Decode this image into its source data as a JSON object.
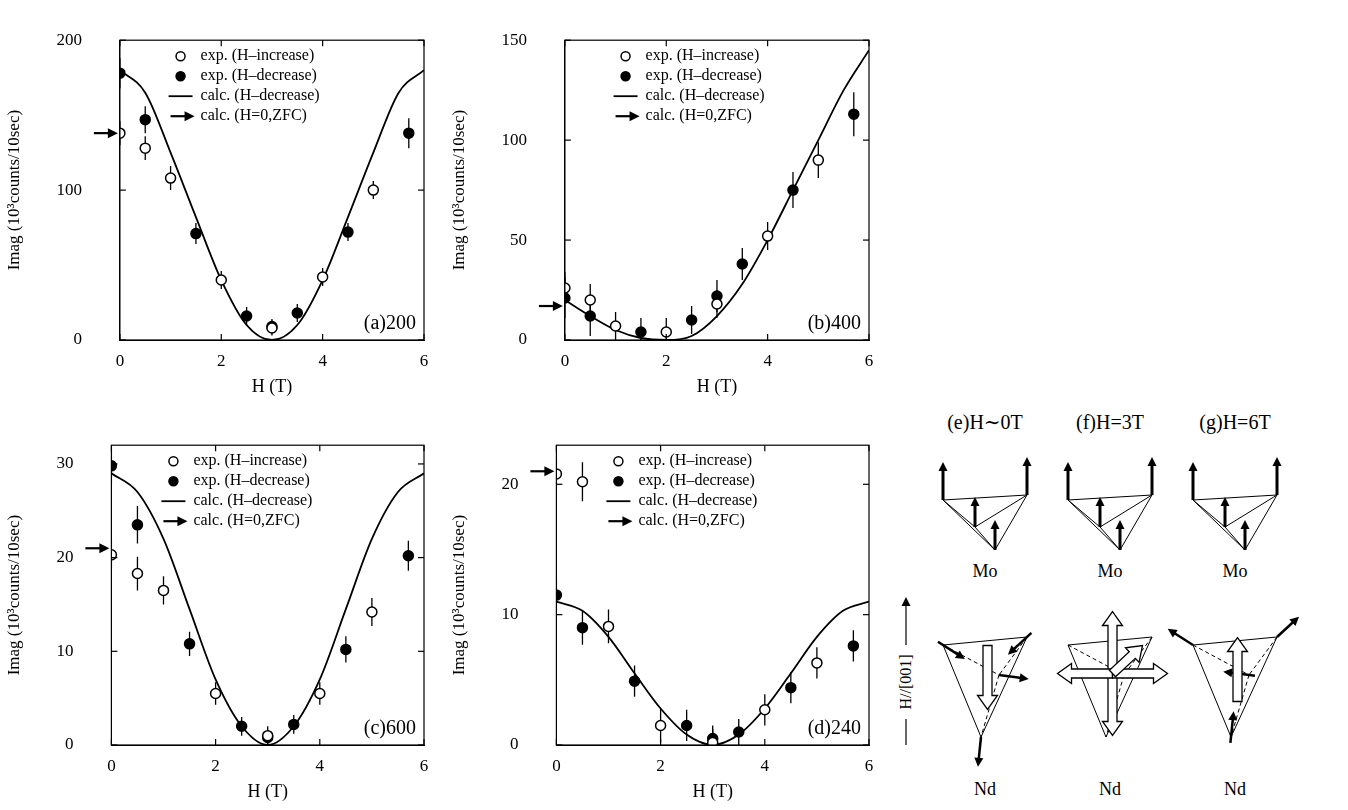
{
  "chart_data": [
    {
      "type": "scatter",
      "title": "(a)200",
      "x_label": "H (T)",
      "y_label": "Imag (10³counts/10sec)",
      "xlim": [
        0,
        6
      ],
      "xticks": [
        0,
        2,
        4,
        6
      ],
      "ylim": [
        0,
        200
      ],
      "yticks": [
        0,
        100,
        200
      ],
      "legend": "upper center",
      "series": [
        {
          "name": "exp. (H–increase)",
          "type": "scatter",
          "marker": "circle-open",
          "color": "#000000",
          "x": [
            0,
            0.5,
            1,
            2,
            3,
            4,
            5
          ],
          "values": [
            138,
            128,
            108,
            40,
            8,
            42,
            100
          ],
          "errors": [
            8,
            8,
            8,
            6,
            5,
            6,
            6
          ]
        },
        {
          "name": "exp. (H–decrease)",
          "type": "scatter",
          "marker": "circle",
          "color": "#000000",
          "x": [
            0,
            0.5,
            1.5,
            2.5,
            3,
            3.5,
            4.5,
            5.7
          ],
          "values": [
            178,
            147,
            71,
            16,
            9,
            18,
            72,
            138
          ],
          "errors": [
            10,
            9,
            7,
            6,
            5,
            6,
            6,
            10
          ]
        },
        {
          "name": "calc. (H–decrease)",
          "type": "line",
          "line_style": "solid",
          "color": "#000000",
          "x": [
            0,
            0.5,
            1,
            1.5,
            2,
            2.5,
            3,
            3.5,
            4,
            4.5,
            5,
            5.5,
            6
          ],
          "values": [
            180,
            165,
            125,
            82,
            40,
            10,
            0,
            10,
            40,
            82,
            125,
            165,
            180
          ]
        },
        {
          "name": "calc. (H=0,ZFC)",
          "type": "arrow",
          "marker": "arrow",
          "color": "#000000",
          "x": [
            0
          ],
          "values": [
            138
          ]
        }
      ]
    },
    {
      "type": "scatter",
      "title": "(b)400",
      "x_label": "H (T)",
      "y_label": "Imag (10³counts/10sec)",
      "xlim": [
        0,
        6
      ],
      "xticks": [
        0,
        2,
        4,
        6
      ],
      "ylim": [
        0,
        150
      ],
      "yticks": [
        0,
        50,
        100,
        150
      ],
      "legend": "upper center",
      "series": [
        {
          "name": "exp. (H–increase)",
          "type": "scatter",
          "marker": "circle-open",
          "color": "#000000",
          "x": [
            0,
            0.5,
            1,
            2,
            3,
            4,
            5
          ],
          "values": [
            26,
            20,
            7,
            4,
            18,
            52,
            90
          ],
          "errors": [
            8,
            8,
            7,
            7,
            7,
            7,
            9
          ]
        },
        {
          "name": "exp. (H–decrease)",
          "type": "scatter",
          "marker": "circle",
          "color": "#000000",
          "x": [
            0,
            0.5,
            1.5,
            2.5,
            3,
            3.5,
            4.5,
            5.7
          ],
          "values": [
            21,
            12,
            4,
            10,
            22,
            38,
            75,
            113
          ],
          "errors": [
            10,
            10,
            7,
            7,
            8,
            8,
            9,
            11
          ]
        },
        {
          "name": "calc. (H–decrease)",
          "type": "line",
          "line_style": "solid",
          "color": "#000000",
          "x": [
            0,
            0.5,
            1,
            1.5,
            2,
            2.5,
            3,
            3.5,
            4,
            4.5,
            5,
            5.5,
            6
          ],
          "values": [
            20,
            12,
            5,
            1,
            0,
            2,
            12,
            28,
            50,
            75,
            100,
            125,
            145
          ]
        },
        {
          "name": "calc. (H=0,ZFC)",
          "type": "arrow",
          "marker": "arrow",
          "color": "#000000",
          "x": [
            0
          ],
          "values": [
            17
          ]
        }
      ]
    },
    {
      "type": "scatter",
      "title": "(c)600",
      "x_label": "H (T)",
      "y_label": "Imag (10³counts/10sec)",
      "xlim": [
        0,
        6
      ],
      "xticks": [
        0,
        2,
        4,
        6
      ],
      "ylim": [
        0,
        32
      ],
      "yticks": [
        0,
        10,
        20,
        30
      ],
      "legend": "upper center",
      "series": [
        {
          "name": "exp. (H–increase)",
          "type": "scatter",
          "marker": "circle-open",
          "color": "#000000",
          "x": [
            0,
            0.5,
            1,
            2,
            3,
            4,
            5
          ],
          "values": [
            20.3,
            18.3,
            16.5,
            5.5,
            1,
            5.5,
            14.2
          ],
          "errors": [
            1.5,
            1.8,
            1.5,
            1.2,
            1,
            1.2,
            1.5
          ]
        },
        {
          "name": "exp. (H–decrease)",
          "type": "scatter",
          "marker": "circle",
          "color": "#000000",
          "x": [
            0,
            0.5,
            1.5,
            2.5,
            3,
            3.5,
            4.5,
            5.7
          ],
          "values": [
            29.8,
            23.5,
            10.8,
            2,
            0.8,
            2.2,
            10.2,
            20.2
          ],
          "errors": [
            2,
            2,
            1.3,
            1,
            0.8,
            1,
            1.4,
            1.6
          ]
        },
        {
          "name": "calc. (H–decrease)",
          "type": "line",
          "line_style": "solid",
          "color": "#000000",
          "x": [
            0,
            0.5,
            1,
            1.5,
            2,
            2.5,
            3,
            3.5,
            4,
            4.5,
            5,
            5.5,
            6
          ],
          "values": [
            29,
            27,
            22,
            14.5,
            7,
            2,
            0,
            2,
            7,
            14.5,
            22,
            27,
            29
          ]
        },
        {
          "name": "calc. (H=0,ZFC)",
          "type": "arrow",
          "marker": "arrow",
          "color": "#000000",
          "x": [
            0
          ],
          "values": [
            21
          ]
        }
      ]
    },
    {
      "type": "scatter",
      "title": "(d)240",
      "x_label": "H (T)",
      "y_label": "Imag (10³counts/10sec)",
      "xlim": [
        0,
        6
      ],
      "xticks": [
        0,
        2,
        4,
        6
      ],
      "ylim": [
        0,
        23
      ],
      "yticks": [
        0,
        10,
        20
      ],
      "legend": "upper center",
      "series": [
        {
          "name": "exp. (H–increase)",
          "type": "scatter",
          "marker": "circle-open",
          "color": "#000000",
          "x": [
            0,
            0.5,
            1,
            2,
            3,
            4,
            5
          ],
          "values": [
            20.8,
            20.2,
            9.1,
            1.5,
            0.2,
            2.7,
            6.3
          ],
          "errors": [
            1.2,
            1.5,
            1.3,
            1.3,
            1,
            1.2,
            1.2
          ]
        },
        {
          "name": "exp. (H–decrease)",
          "type": "scatter",
          "marker": "circle",
          "color": "#000000",
          "x": [
            0,
            0.5,
            1.5,
            2.5,
            3,
            3.5,
            4.5,
            5.7
          ],
          "values": [
            11.5,
            9,
            4.9,
            1.5,
            0.5,
            1,
            4.4,
            7.6
          ],
          "errors": [
            1.2,
            1.3,
            1.2,
            1.2,
            1,
            1,
            1.2,
            1.2
          ]
        },
        {
          "name": "calc. (H–decrease)",
          "type": "line",
          "line_style": "solid",
          "color": "#000000",
          "x": [
            0,
            0.5,
            1,
            1.5,
            2,
            2.5,
            3,
            3.5,
            4,
            4.5,
            5,
            5.5,
            6
          ],
          "values": [
            11,
            10.3,
            8.3,
            5.5,
            2.8,
            0.8,
            0,
            0.8,
            2.8,
            5.5,
            8.3,
            10.3,
            11
          ]
        },
        {
          "name": "calc. (H=0,ZFC)",
          "type": "arrow",
          "marker": "arrow",
          "color": "#000000",
          "x": [
            0
          ],
          "values": [
            21
          ]
        }
      ]
    }
  ],
  "diagram": {
    "field_label": "H//[001]",
    "panels": [
      {
        "label": "(e)H∼0T",
        "mo_label": "Mo",
        "nd_label": "Nd"
      },
      {
        "label": "(f)H=3T",
        "mo_label": "Mo",
        "nd_label": "Nd"
      },
      {
        "label": "(g)H=6T",
        "mo_label": "Mo",
        "nd_label": "Nd"
      }
    ]
  }
}
